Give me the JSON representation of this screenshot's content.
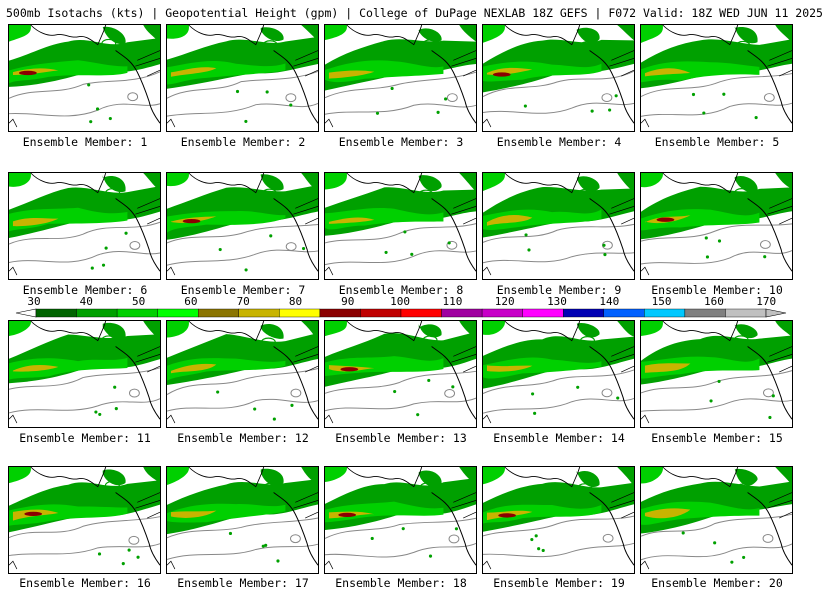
{
  "header": {
    "title": "500mb Isotachs (kts) | Geopotential Height (gpm) | College of DuPage NEXLAB   18Z GEFS | F072 Valid: 18Z WED JUN 11 2025"
  },
  "colorbar": {
    "ticks": [
      "30",
      "40",
      "50",
      "60",
      "70",
      "80",
      "90",
      "100",
      "110",
      "120",
      "130",
      "140",
      "150",
      "160",
      "170"
    ],
    "colors": [
      "#006400",
      "#00a000",
      "#00d000",
      "#00ff00",
      "#8b7500",
      "#c8b400",
      "#ffff00",
      "#8b0000",
      "#c00000",
      "#ff0000",
      "#a000a0",
      "#c800c8",
      "#ff00ff",
      "#0000b4",
      "#0060ff",
      "#00c8ff",
      "#808080",
      "#c0c0c0"
    ]
  },
  "members": [
    {
      "label": "Ensemble Member: 1"
    },
    {
      "label": "Ensemble Member: 2"
    },
    {
      "label": "Ensemble Member: 3"
    },
    {
      "label": "Ensemble Member: 4"
    },
    {
      "label": "Ensemble Member: 5"
    },
    {
      "label": "Ensemble Member: 6"
    },
    {
      "label": "Ensemble Member: 7"
    },
    {
      "label": "Ensemble Member: 8"
    },
    {
      "label": "Ensemble Member: 9"
    },
    {
      "label": "Ensemble Member: 10"
    },
    {
      "label": "Ensemble Member: 11"
    },
    {
      "label": "Ensemble Member: 12"
    },
    {
      "label": "Ensemble Member: 13"
    },
    {
      "label": "Ensemble Member: 14"
    },
    {
      "label": "Ensemble Member: 15"
    },
    {
      "label": "Ensemble Member: 16"
    },
    {
      "label": "Ensemble Member: 17"
    },
    {
      "label": "Ensemble Member: 18"
    },
    {
      "label": "Ensemble Member: 19"
    },
    {
      "label": "Ensemble Member: 20"
    }
  ]
}
